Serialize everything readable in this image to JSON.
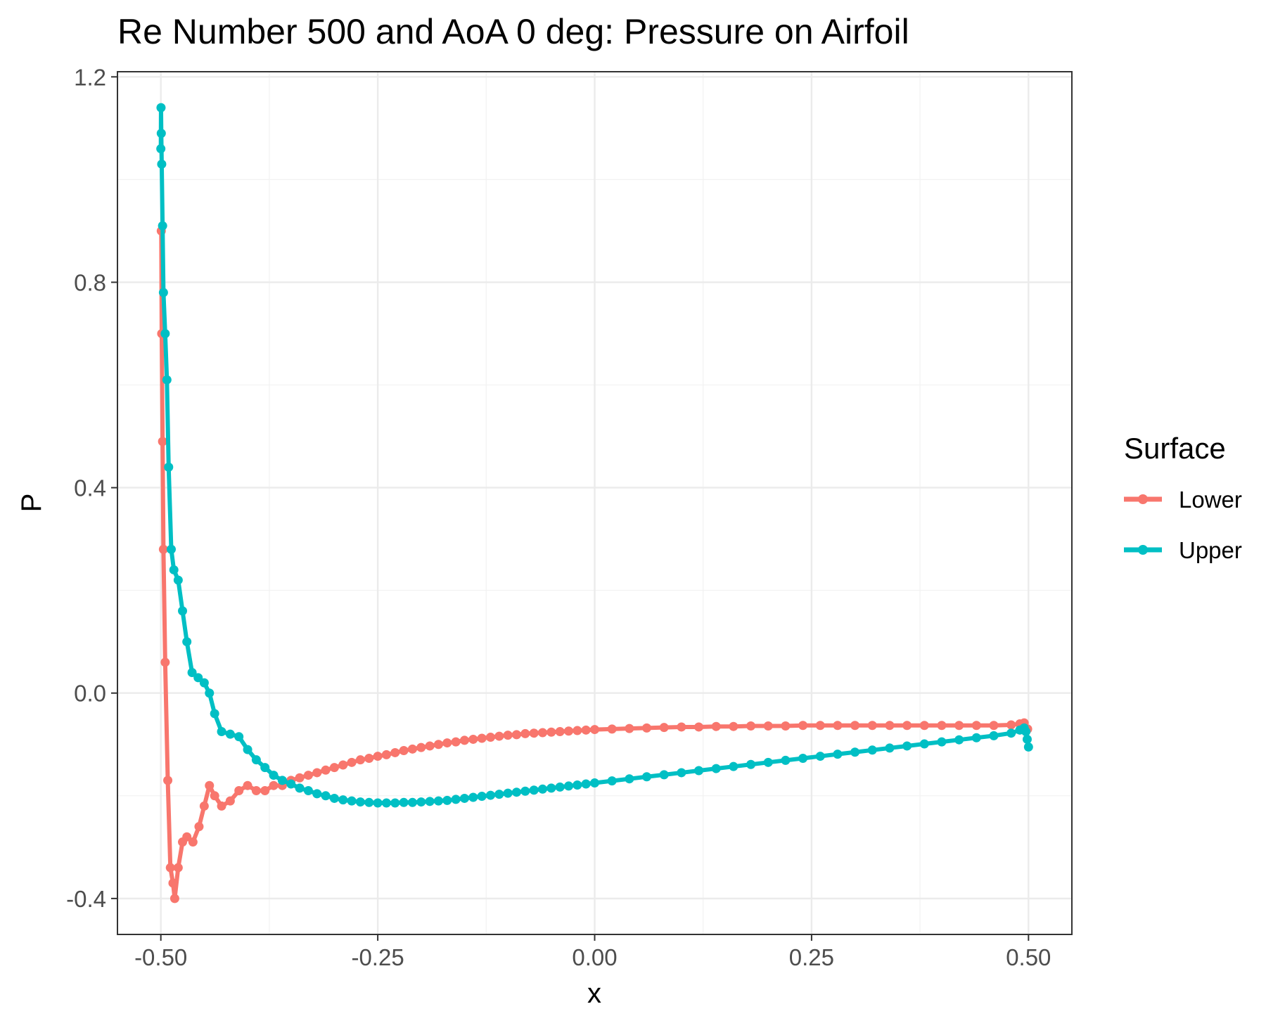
{
  "chart_data": {
    "type": "line",
    "title": "Re Number 500 and AoA 0 deg: Pressure on Airfoil",
    "xlabel": "x",
    "ylabel": "P",
    "xlim": [
      -0.55,
      0.55
    ],
    "ylim": [
      -0.47,
      1.21
    ],
    "x_ticks": [
      -0.5,
      -0.25,
      0.0,
      0.25,
      0.5
    ],
    "x_tick_labels": [
      "-0.50",
      "-0.25",
      "0.00",
      "0.25",
      "0.50"
    ],
    "y_ticks": [
      -0.4,
      0.0,
      0.4,
      0.8,
      1.2
    ],
    "y_tick_labels": [
      "-0.4",
      "0.0",
      "0.4",
      "0.8",
      "1.2"
    ],
    "grid": true,
    "legend": {
      "title": "Surface",
      "position": "right"
    },
    "series": [
      {
        "name": "Lower",
        "color": "#F8766D",
        "points": [
          [
            -0.4995,
            0.9
          ],
          [
            -0.499,
            0.7
          ],
          [
            -0.498,
            0.49
          ],
          [
            -0.497,
            0.28
          ],
          [
            -0.495,
            0.06
          ],
          [
            -0.492,
            -0.17
          ],
          [
            -0.489,
            -0.34
          ],
          [
            -0.486,
            -0.37
          ],
          [
            -0.484,
            -0.4
          ],
          [
            -0.48,
            -0.34
          ],
          [
            -0.475,
            -0.29
          ],
          [
            -0.47,
            -0.28
          ],
          [
            -0.463,
            -0.29
          ],
          [
            -0.456,
            -0.26
          ],
          [
            -0.45,
            -0.22
          ],
          [
            -0.444,
            -0.18
          ],
          [
            -0.438,
            -0.2
          ],
          [
            -0.43,
            -0.22
          ],
          [
            -0.42,
            -0.21
          ],
          [
            -0.41,
            -0.19
          ],
          [
            -0.4,
            -0.18
          ],
          [
            -0.39,
            -0.19
          ],
          [
            -0.38,
            -0.19
          ],
          [
            -0.37,
            -0.18
          ],
          [
            -0.36,
            -0.18
          ],
          [
            -0.35,
            -0.17
          ],
          [
            -0.34,
            -0.165
          ],
          [
            -0.33,
            -0.16
          ],
          [
            -0.32,
            -0.155
          ],
          [
            -0.31,
            -0.15
          ],
          [
            -0.3,
            -0.145
          ],
          [
            -0.29,
            -0.14
          ],
          [
            -0.28,
            -0.135
          ],
          [
            -0.27,
            -0.13
          ],
          [
            -0.26,
            -0.127
          ],
          [
            -0.25,
            -0.123
          ],
          [
            -0.24,
            -0.12
          ],
          [
            -0.23,
            -0.116
          ],
          [
            -0.22,
            -0.112
          ],
          [
            -0.21,
            -0.109
          ],
          [
            -0.2,
            -0.106
          ],
          [
            -0.19,
            -0.103
          ],
          [
            -0.18,
            -0.1
          ],
          [
            -0.17,
            -0.097
          ],
          [
            -0.16,
            -0.095
          ],
          [
            -0.15,
            -0.092
          ],
          [
            -0.14,
            -0.09
          ],
          [
            -0.13,
            -0.088
          ],
          [
            -0.12,
            -0.086
          ],
          [
            -0.11,
            -0.084
          ],
          [
            -0.1,
            -0.082
          ],
          [
            -0.09,
            -0.081
          ],
          [
            -0.08,
            -0.079
          ],
          [
            -0.07,
            -0.078
          ],
          [
            -0.06,
            -0.077
          ],
          [
            -0.05,
            -0.076
          ],
          [
            -0.04,
            -0.075
          ],
          [
            -0.03,
            -0.074
          ],
          [
            -0.02,
            -0.073
          ],
          [
            -0.01,
            -0.072
          ],
          [
            0.0,
            -0.071
          ],
          [
            0.02,
            -0.07
          ],
          [
            0.04,
            -0.069
          ],
          [
            0.06,
            -0.068
          ],
          [
            0.08,
            -0.067
          ],
          [
            0.1,
            -0.066
          ],
          [
            0.12,
            -0.066
          ],
          [
            0.14,
            -0.065
          ],
          [
            0.16,
            -0.065
          ],
          [
            0.18,
            -0.064
          ],
          [
            0.2,
            -0.064
          ],
          [
            0.22,
            -0.064
          ],
          [
            0.24,
            -0.063
          ],
          [
            0.26,
            -0.063
          ],
          [
            0.28,
            -0.063
          ],
          [
            0.3,
            -0.063
          ],
          [
            0.32,
            -0.063
          ],
          [
            0.34,
            -0.063
          ],
          [
            0.36,
            -0.063
          ],
          [
            0.38,
            -0.063
          ],
          [
            0.4,
            -0.063
          ],
          [
            0.42,
            -0.063
          ],
          [
            0.44,
            -0.063
          ],
          [
            0.46,
            -0.063
          ],
          [
            0.48,
            -0.062
          ],
          [
            0.49,
            -0.06
          ],
          [
            0.495,
            -0.058
          ],
          [
            0.499,
            -0.07
          ]
        ]
      },
      {
        "name": "Upper",
        "color": "#00BFC4",
        "points": [
          [
            -0.5,
            1.06
          ],
          [
            -0.4998,
            1.14
          ],
          [
            -0.4995,
            1.09
          ],
          [
            -0.499,
            1.03
          ],
          [
            -0.498,
            0.91
          ],
          [
            -0.497,
            0.78
          ],
          [
            -0.495,
            0.7
          ],
          [
            -0.493,
            0.61
          ],
          [
            -0.491,
            0.44
          ],
          [
            -0.488,
            0.28
          ],
          [
            -0.485,
            0.24
          ],
          [
            -0.48,
            0.22
          ],
          [
            -0.475,
            0.16
          ],
          [
            -0.47,
            0.1
          ],
          [
            -0.464,
            0.04
          ],
          [
            -0.457,
            0.03
          ],
          [
            -0.45,
            0.02
          ],
          [
            -0.444,
            0.0
          ],
          [
            -0.438,
            -0.04
          ],
          [
            -0.43,
            -0.075
          ],
          [
            -0.42,
            -0.08
          ],
          [
            -0.41,
            -0.085
          ],
          [
            -0.4,
            -0.11
          ],
          [
            -0.39,
            -0.13
          ],
          [
            -0.38,
            -0.145
          ],
          [
            -0.37,
            -0.16
          ],
          [
            -0.36,
            -0.17
          ],
          [
            -0.35,
            -0.177
          ],
          [
            -0.34,
            -0.185
          ],
          [
            -0.33,
            -0.19
          ],
          [
            -0.32,
            -0.196
          ],
          [
            -0.31,
            -0.2
          ],
          [
            -0.3,
            -0.205
          ],
          [
            -0.29,
            -0.208
          ],
          [
            -0.28,
            -0.21
          ],
          [
            -0.27,
            -0.212
          ],
          [
            -0.26,
            -0.213
          ],
          [
            -0.25,
            -0.214
          ],
          [
            -0.24,
            -0.214
          ],
          [
            -0.23,
            -0.214
          ],
          [
            -0.22,
            -0.213
          ],
          [
            -0.21,
            -0.213
          ],
          [
            -0.2,
            -0.212
          ],
          [
            -0.19,
            -0.211
          ],
          [
            -0.18,
            -0.21
          ],
          [
            -0.17,
            -0.209
          ],
          [
            -0.16,
            -0.207
          ],
          [
            -0.15,
            -0.205
          ],
          [
            -0.14,
            -0.203
          ],
          [
            -0.13,
            -0.201
          ],
          [
            -0.12,
            -0.199
          ],
          [
            -0.11,
            -0.197
          ],
          [
            -0.1,
            -0.195
          ],
          [
            -0.09,
            -0.193
          ],
          [
            -0.08,
            -0.191
          ],
          [
            -0.07,
            -0.189
          ],
          [
            -0.06,
            -0.187
          ],
          [
            -0.05,
            -0.185
          ],
          [
            -0.04,
            -0.183
          ],
          [
            -0.03,
            -0.181
          ],
          [
            -0.02,
            -0.179
          ],
          [
            -0.01,
            -0.177
          ],
          [
            0.0,
            -0.175
          ],
          [
            0.02,
            -0.171
          ],
          [
            0.04,
            -0.167
          ],
          [
            0.06,
            -0.163
          ],
          [
            0.08,
            -0.159
          ],
          [
            0.1,
            -0.155
          ],
          [
            0.12,
            -0.151
          ],
          [
            0.14,
            -0.147
          ],
          [
            0.16,
            -0.143
          ],
          [
            0.18,
            -0.139
          ],
          [
            0.2,
            -0.135
          ],
          [
            0.22,
            -0.131
          ],
          [
            0.24,
            -0.127
          ],
          [
            0.26,
            -0.123
          ],
          [
            0.28,
            -0.119
          ],
          [
            0.3,
            -0.115
          ],
          [
            0.32,
            -0.111
          ],
          [
            0.34,
            -0.107
          ],
          [
            0.36,
            -0.103
          ],
          [
            0.38,
            -0.099
          ],
          [
            0.4,
            -0.095
          ],
          [
            0.42,
            -0.091
          ],
          [
            0.44,
            -0.087
          ],
          [
            0.46,
            -0.083
          ],
          [
            0.48,
            -0.078
          ],
          [
            0.49,
            -0.072
          ],
          [
            0.495,
            -0.068
          ],
          [
            0.497,
            -0.075
          ],
          [
            0.4985,
            -0.09
          ],
          [
            0.5,
            -0.105
          ]
        ]
      }
    ]
  }
}
